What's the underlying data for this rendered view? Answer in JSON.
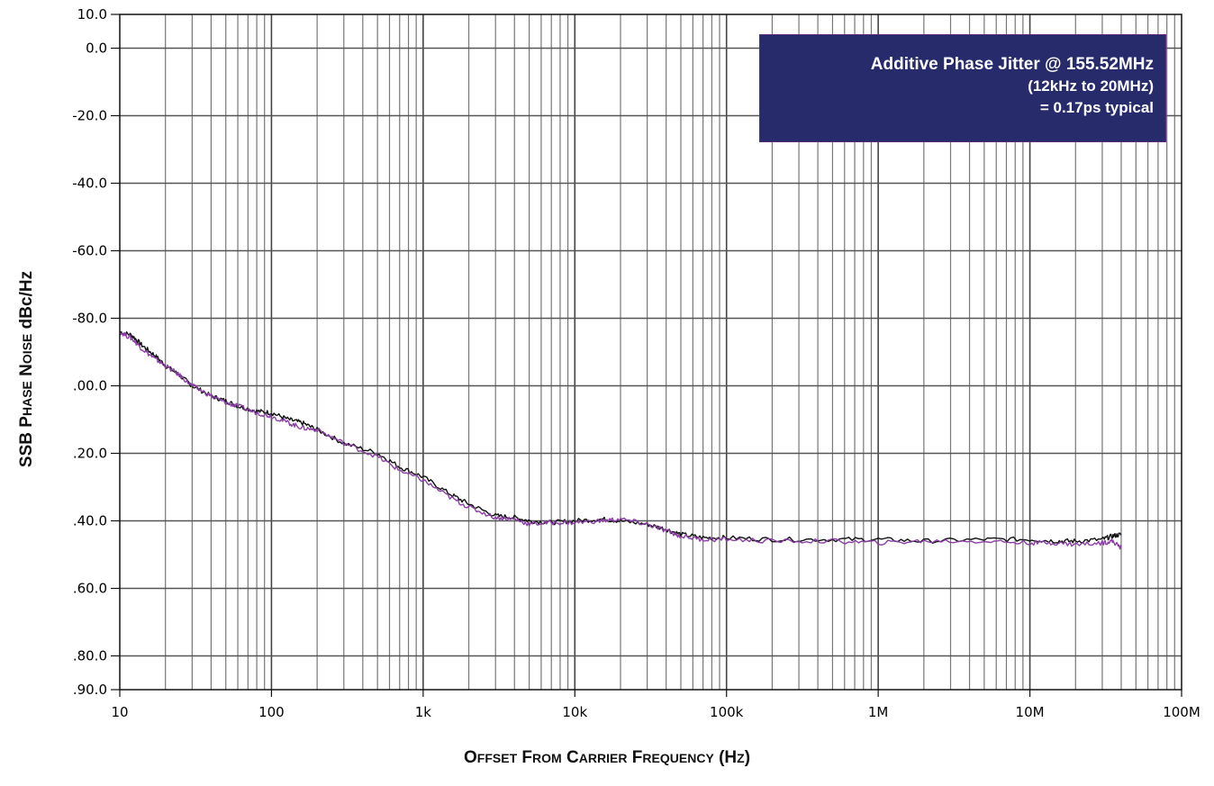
{
  "chart_data": {
    "type": "line",
    "title": "",
    "ylabel": "SSB Phase Noise dBc/Hz",
    "xlabel": "Offset From Carrier Frequency (Hz)",
    "x_scale": "log",
    "xlim": [
      10,
      100000000
    ],
    "ylim": [
      -190,
      10
    ],
    "x_ticks": [
      10,
      100,
      1000,
      10000,
      100000,
      1000000,
      10000000,
      100000000
    ],
    "x_tick_labels": [
      "10",
      "100",
      "1k",
      "10k",
      "100k",
      "1M",
      "10M",
      "100M"
    ],
    "y_ticks": [
      10,
      0,
      -20,
      -40,
      -60,
      -80,
      -100,
      -120,
      -140,
      -160,
      -180,
      -190
    ],
    "y_tick_labels": [
      "10.0",
      "0.0",
      "-20.0",
      "-40.0",
      "-60.0",
      "-80.0",
      ".00.0",
      ".20.0",
      ".40.0",
      ".60.0",
      ".80.0",
      ".90.0"
    ],
    "grid": true,
    "annotation": [
      "Additive Phase Jitter @ 155.52MHz",
      "(12kHz to 20MHz)",
      "= 0.17ps typical"
    ],
    "series": [
      {
        "color": "#111111",
        "points": [
          [
            10,
            -84
          ],
          [
            12,
            -85
          ],
          [
            14,
            -88
          ],
          [
            17,
            -91
          ],
          [
            20,
            -94
          ],
          [
            25,
            -97
          ],
          [
            30,
            -100
          ],
          [
            40,
            -103
          ],
          [
            50,
            -104.5
          ],
          [
            60,
            -106
          ],
          [
            80,
            -107.5
          ],
          [
            100,
            -108
          ],
          [
            130,
            -110
          ],
          [
            160,
            -111
          ],
          [
            200,
            -113
          ],
          [
            300,
            -117
          ],
          [
            500,
            -120
          ],
          [
            700,
            -124
          ],
          [
            1000,
            -127
          ],
          [
            1500,
            -132
          ],
          [
            2000,
            -135
          ],
          [
            3000,
            -138.5
          ],
          [
            4000,
            -139
          ],
          [
            5000,
            -140
          ],
          [
            7000,
            -140.5
          ],
          [
            10000,
            -140
          ],
          [
            15000,
            -139.5
          ],
          [
            20000,
            -140
          ],
          [
            30000,
            -141
          ],
          [
            40000,
            -142.5
          ],
          [
            50000,
            -144
          ],
          [
            70000,
            -145
          ],
          [
            100000,
            -145
          ],
          [
            200000,
            -145.5
          ],
          [
            500000,
            -145.5
          ],
          [
            1000000,
            -145.5
          ],
          [
            2000000,
            -146
          ],
          [
            5000000,
            -145.5
          ],
          [
            10000000,
            -145.5
          ],
          [
            15000000,
            -146
          ],
          [
            20000000,
            -146
          ],
          [
            30000000,
            -145.5
          ],
          [
            35000000,
            -144.5
          ],
          [
            40000000,
            -144
          ]
        ]
      },
      {
        "color": "#8b3fa5",
        "points": [
          [
            10,
            -84
          ],
          [
            12,
            -86
          ],
          [
            14,
            -89
          ],
          [
            17,
            -92
          ],
          [
            20,
            -94
          ],
          [
            25,
            -97
          ],
          [
            30,
            -100
          ],
          [
            40,
            -103
          ],
          [
            50,
            -105
          ],
          [
            60,
            -106
          ],
          [
            80,
            -108
          ],
          [
            100,
            -109
          ],
          [
            130,
            -111
          ],
          [
            160,
            -112.5
          ],
          [
            200,
            -113
          ],
          [
            300,
            -117
          ],
          [
            500,
            -121
          ],
          [
            700,
            -125
          ],
          [
            1000,
            -128
          ],
          [
            1500,
            -133
          ],
          [
            2000,
            -136
          ],
          [
            3000,
            -139
          ],
          [
            4000,
            -139.5
          ],
          [
            5000,
            -141
          ],
          [
            7000,
            -140.5
          ],
          [
            10000,
            -140.5
          ],
          [
            15000,
            -140
          ],
          [
            20000,
            -139.5
          ],
          [
            30000,
            -141
          ],
          [
            40000,
            -143
          ],
          [
            50000,
            -144.5
          ],
          [
            70000,
            -145.5
          ],
          [
            100000,
            -145.5
          ],
          [
            200000,
            -146
          ],
          [
            500000,
            -146
          ],
          [
            1000000,
            -146.5
          ],
          [
            2000000,
            -146
          ],
          [
            5000000,
            -146
          ],
          [
            10000000,
            -146.5
          ],
          [
            15000000,
            -146.5
          ],
          [
            20000000,
            -147
          ],
          [
            30000000,
            -146.5
          ],
          [
            35000000,
            -146
          ],
          [
            40000000,
            -148
          ]
        ]
      }
    ]
  }
}
